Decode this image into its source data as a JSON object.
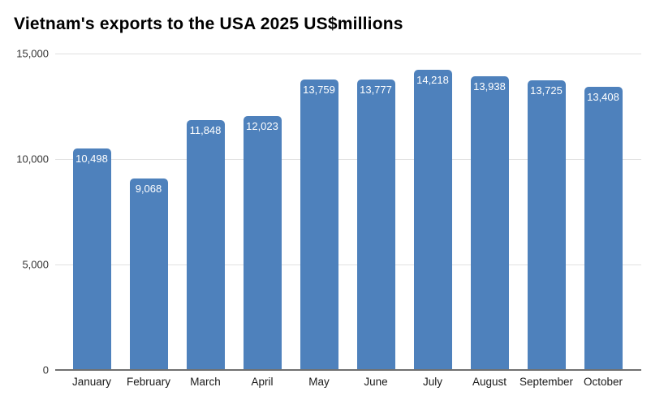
{
  "chart_data": {
    "type": "bar",
    "title": "Vietnam's exports to the USA 2025 US$millions",
    "categories": [
      "January",
      "February",
      "March",
      "April",
      "May",
      "June",
      "July",
      "August",
      "September",
      "October"
    ],
    "values": [
      10498,
      9068,
      11848,
      12023,
      13759,
      13777,
      14218,
      13938,
      13725,
      13408
    ],
    "values_formatted": [
      "10,498",
      "9,068",
      "11,848",
      "12,023",
      "13,759",
      "13,777",
      "14,218",
      "13,938",
      "13,725",
      "13,408"
    ],
    "xlabel": "",
    "ylabel": "",
    "ylim": [
      0,
      15000
    ],
    "y_ticks": [
      {
        "value": 0,
        "label": "0"
      },
      {
        "value": 5000,
        "label": "5,000"
      },
      {
        "value": 10000,
        "label": "10,000"
      },
      {
        "value": 15000,
        "label": "15,000"
      }
    ],
    "grid": true,
    "legend_position": "none",
    "colors": {
      "bar": "#4e81bc",
      "bar_label": "#ffffff",
      "gridline": "#e0e0e0",
      "axis_baseline": "#707070",
      "title_text": "#000000",
      "tick_text": "#333333",
      "background": "#ffffff"
    }
  }
}
